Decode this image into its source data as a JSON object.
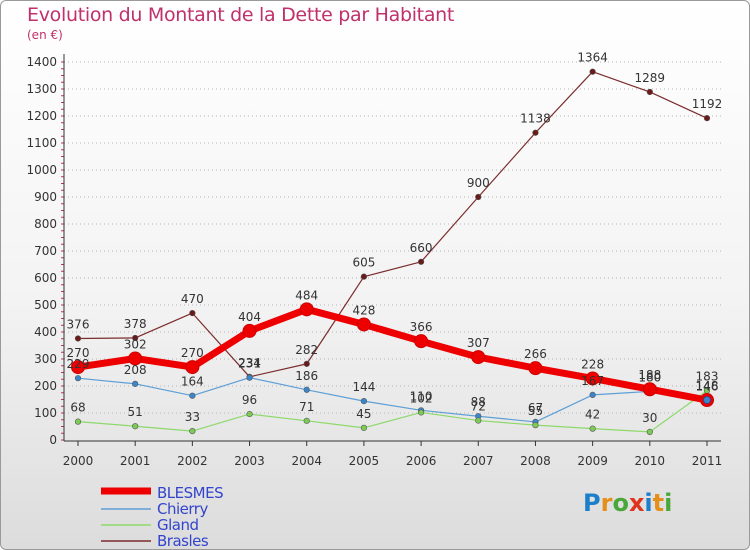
{
  "title": "Evolution du Montant de la Dette par Habitant",
  "subtitle": "(en €)",
  "logo": {
    "letters": [
      "P",
      "r",
      "o",
      "x",
      "i",
      "t",
      "i"
    ],
    "colors": [
      "#1d7fc9",
      "#e58f1b",
      "#4aa83a",
      "#e0331d",
      "#1d7fc9",
      "#e58f1b",
      "#4aa83a"
    ]
  },
  "chart_data": {
    "type": "line",
    "x": [
      "2000",
      "2001",
      "2002",
      "2003",
      "2004",
      "2005",
      "2006",
      "2007",
      "2008",
      "2009",
      "2010",
      "2011"
    ],
    "ylim": [
      0,
      1400
    ],
    "yticks": [
      0,
      100,
      200,
      300,
      400,
      500,
      600,
      700,
      800,
      900,
      1000,
      1100,
      1200,
      1300,
      1400
    ],
    "grid": "horizontal dotted",
    "legend_position": "bottom-left",
    "series": [
      {
        "name": "Brasles",
        "color": "#7b2c2c",
        "fill": "#6b1a1a",
        "width": 1.2,
        "marker": 2.8,
        "values": [
          376,
          378,
          470,
          234,
          282,
          605,
          660,
          900,
          1138,
          1364,
          1289,
          1192
        ],
        "labels": [
          "376",
          "378",
          "470",
          "234",
          "282",
          "605",
          "660",
          "900",
          "1138",
          "1364",
          "1289",
          "1192"
        ]
      },
      {
        "name": "Chierry",
        "color": "#5d9fd6",
        "fill": "#3a86cc",
        "width": 1.2,
        "marker": 2.8,
        "values": [
          229,
          208,
          164,
          231,
          186,
          144,
          110,
          88,
          67,
          167,
          180,
          146
        ],
        "labels": [
          "229",
          "208",
          "164",
          "231",
          "186",
          "144",
          "110",
          "88",
          "67",
          "167",
          "180",
          "146"
        ]
      },
      {
        "name": "Gland",
        "color": "#8dd96a",
        "fill": "#7ccb56",
        "width": 1.2,
        "marker": 2.8,
        "values": [
          68,
          51,
          33,
          96,
          71,
          45,
          102,
          72,
          55,
          42,
          30,
          183
        ],
        "labels": [
          "68",
          "51",
          "33",
          "96",
          "71",
          "45",
          "102",
          "72",
          "55",
          "42",
          "30",
          "183"
        ]
      },
      {
        "name": "BLESMES",
        "color": "#ee0000",
        "fill": "#ee0000",
        "width": 7,
        "marker": 6.5,
        "values": [
          270,
          302,
          270,
          404,
          484,
          428,
          366,
          307,
          266,
          228,
          188,
          148
        ],
        "labels": [
          "270",
          "302",
          "270",
          "404",
          "484",
          "428",
          "366",
          "307",
          "266",
          "228",
          "188",
          "148"
        ]
      }
    ],
    "legend": [
      "BLESMES",
      "Chierry",
      "Gland",
      "Brasles"
    ]
  }
}
